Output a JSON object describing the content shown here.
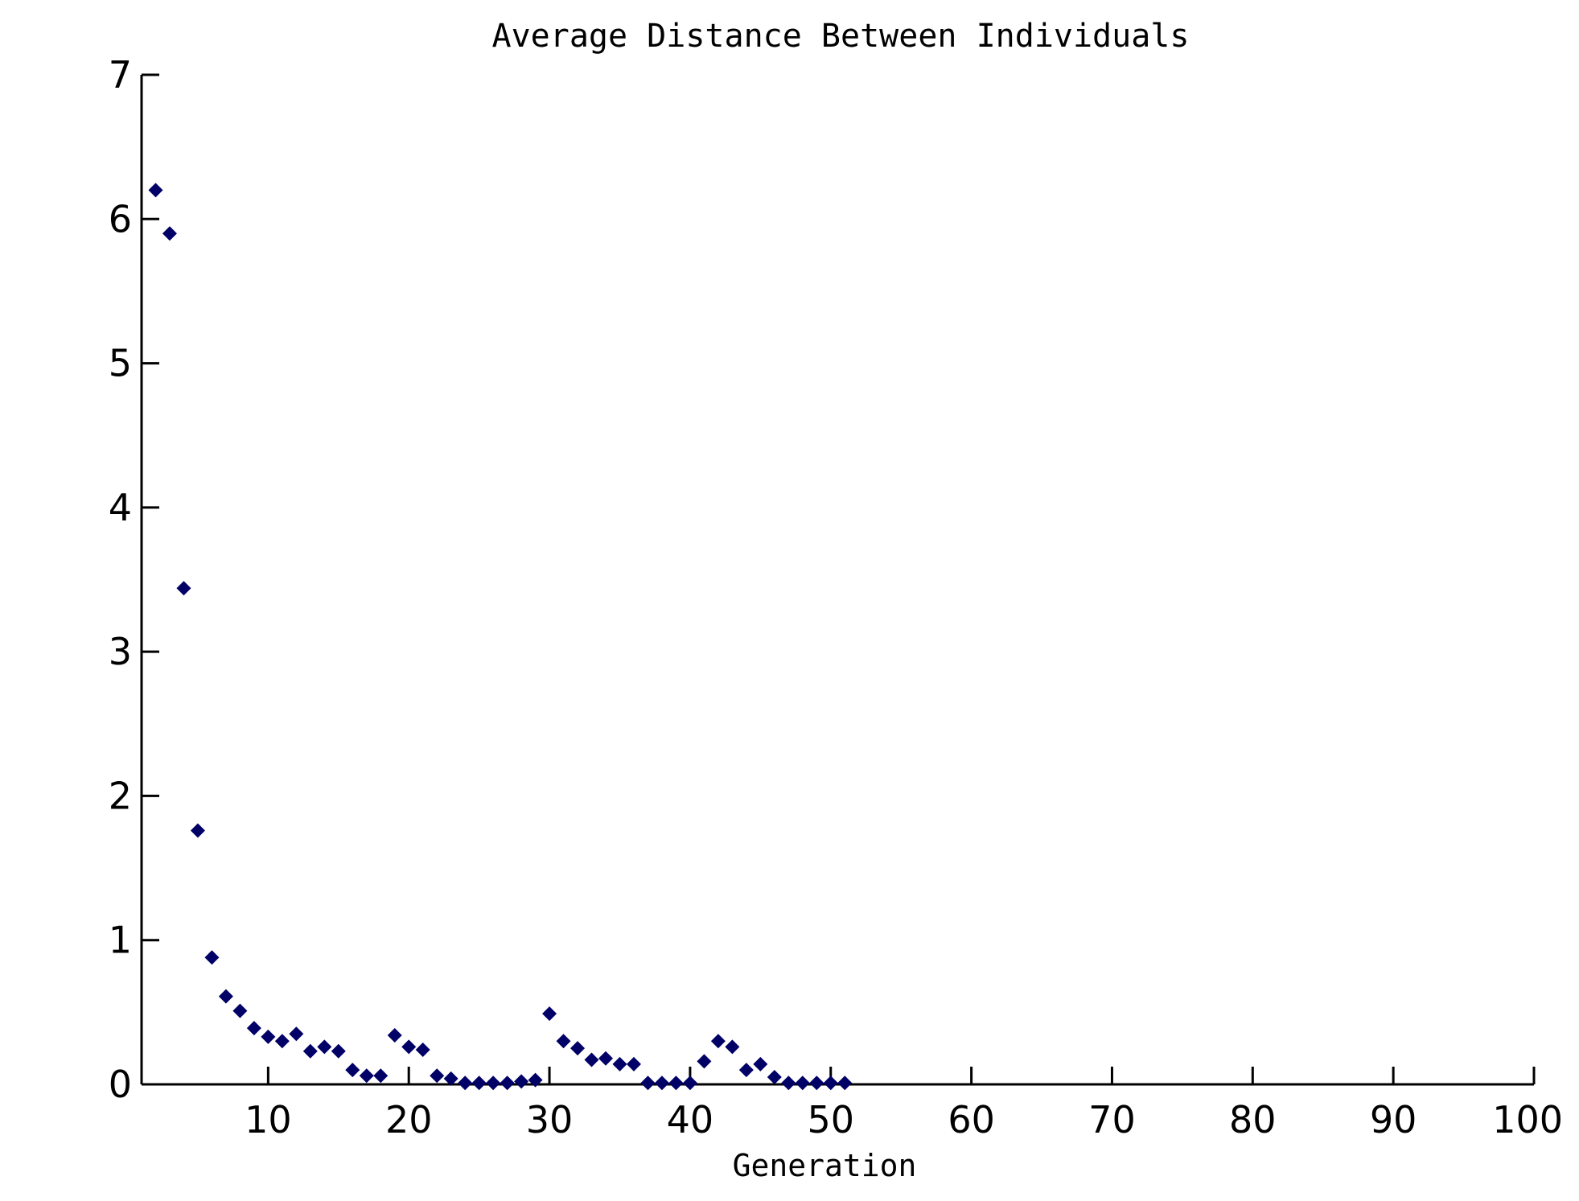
{
  "chart_data": {
    "type": "scatter",
    "title": "Average Distance Between Individuals",
    "xlabel": "Generation",
    "ylabel": "",
    "xlim": [
      1,
      100
    ],
    "ylim": [
      0,
      7
    ],
    "xticks": [
      10,
      20,
      30,
      40,
      50,
      60,
      70,
      80,
      90,
      100
    ],
    "yticks": [
      0,
      1,
      2,
      3,
      4,
      5,
      6,
      7
    ],
    "grid": false,
    "marker": "diamond",
    "marker_color": "#000066",
    "series": [
      {
        "x": [
          2,
          3,
          4,
          5,
          6,
          7,
          8,
          9,
          10,
          11,
          12,
          13,
          14,
          15,
          16,
          17,
          18,
          19,
          20,
          21,
          22,
          23,
          24,
          25,
          26,
          27,
          28,
          29,
          30,
          31,
          32,
          33,
          34,
          35,
          36,
          37,
          38,
          39,
          40,
          41,
          42,
          43,
          44,
          45,
          46,
          47,
          48,
          49,
          50,
          51
        ],
        "y": [
          6.2,
          5.9,
          3.44,
          1.76,
          0.88,
          0.61,
          0.51,
          0.39,
          0.33,
          0.3,
          0.35,
          0.23,
          0.26,
          0.23,
          0.1,
          0.06,
          0.06,
          0.34,
          0.26,
          0.24,
          0.06,
          0.04,
          0.01,
          0.01,
          0.01,
          0.01,
          0.02,
          0.03,
          0.49,
          0.3,
          0.25,
          0.17,
          0.18,
          0.14,
          0.14,
          0.01,
          0.01,
          0.01,
          0.01,
          0.16,
          0.3,
          0.26,
          0.1,
          0.14,
          0.05,
          0.01,
          0.01,
          0.01,
          0.01,
          0.01
        ]
      }
    ]
  }
}
